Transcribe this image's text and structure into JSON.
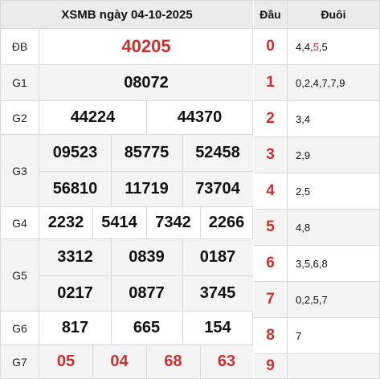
{
  "header": {
    "title": "XSMB ngày 04-10-2025"
  },
  "prizes": {
    "db": {
      "label": "ĐB",
      "numbers": [
        "40205"
      ]
    },
    "g1": {
      "label": "G1",
      "numbers": [
        "08072"
      ]
    },
    "g2": {
      "label": "G2",
      "numbers": [
        "44224",
        "44370"
      ]
    },
    "g3": {
      "label": "G3",
      "numbers": [
        "09523",
        "85775",
        "52458",
        "56810",
        "11719",
        "73704"
      ]
    },
    "g4": {
      "label": "G4",
      "numbers": [
        "2232",
        "5414",
        "7342",
        "2266"
      ]
    },
    "g5": {
      "label": "G5",
      "numbers": [
        "3312",
        "0839",
        "0187",
        "0217",
        "0877",
        "3745"
      ]
    },
    "g6": {
      "label": "G6",
      "numbers": [
        "817",
        "665",
        "154"
      ]
    },
    "g7": {
      "label": "G7",
      "numbers": [
        "05",
        "04",
        "68",
        "63"
      ]
    }
  },
  "loto": {
    "header_dau": "Đầu",
    "header_duoi": "Đuôi",
    "rows": [
      {
        "dau": "0",
        "duoi_before": "4,4,",
        "duoi_highlight": "5",
        "duoi_after": ",5"
      },
      {
        "dau": "1",
        "duoi_before": "0,2,4,7,7,9",
        "duoi_highlight": "",
        "duoi_after": ""
      },
      {
        "dau": "2",
        "duoi_before": "3,4",
        "duoi_highlight": "",
        "duoi_after": ""
      },
      {
        "dau": "3",
        "duoi_before": "2,9",
        "duoi_highlight": "",
        "duoi_after": ""
      },
      {
        "dau": "4",
        "duoi_before": "2,5",
        "duoi_highlight": "",
        "duoi_after": ""
      },
      {
        "dau": "5",
        "duoi_before": "4,8",
        "duoi_highlight": "",
        "duoi_after": ""
      },
      {
        "dau": "6",
        "duoi_before": "3,5,6,8",
        "duoi_highlight": "",
        "duoi_after": ""
      },
      {
        "dau": "7",
        "duoi_before": "0,2,5,7",
        "duoi_highlight": "",
        "duoi_after": ""
      },
      {
        "dau": "8",
        "duoi_before": "7",
        "duoi_highlight": "",
        "duoi_after": ""
      },
      {
        "dau": "9",
        "duoi_before": "",
        "duoi_highlight": "",
        "duoi_after": ""
      }
    ]
  },
  "colors": {
    "accent_red": "#c9302c",
    "header_bg": "#ebebeb",
    "alt_row_bg": "#f4f4f4",
    "border": "#d9d9d9"
  }
}
